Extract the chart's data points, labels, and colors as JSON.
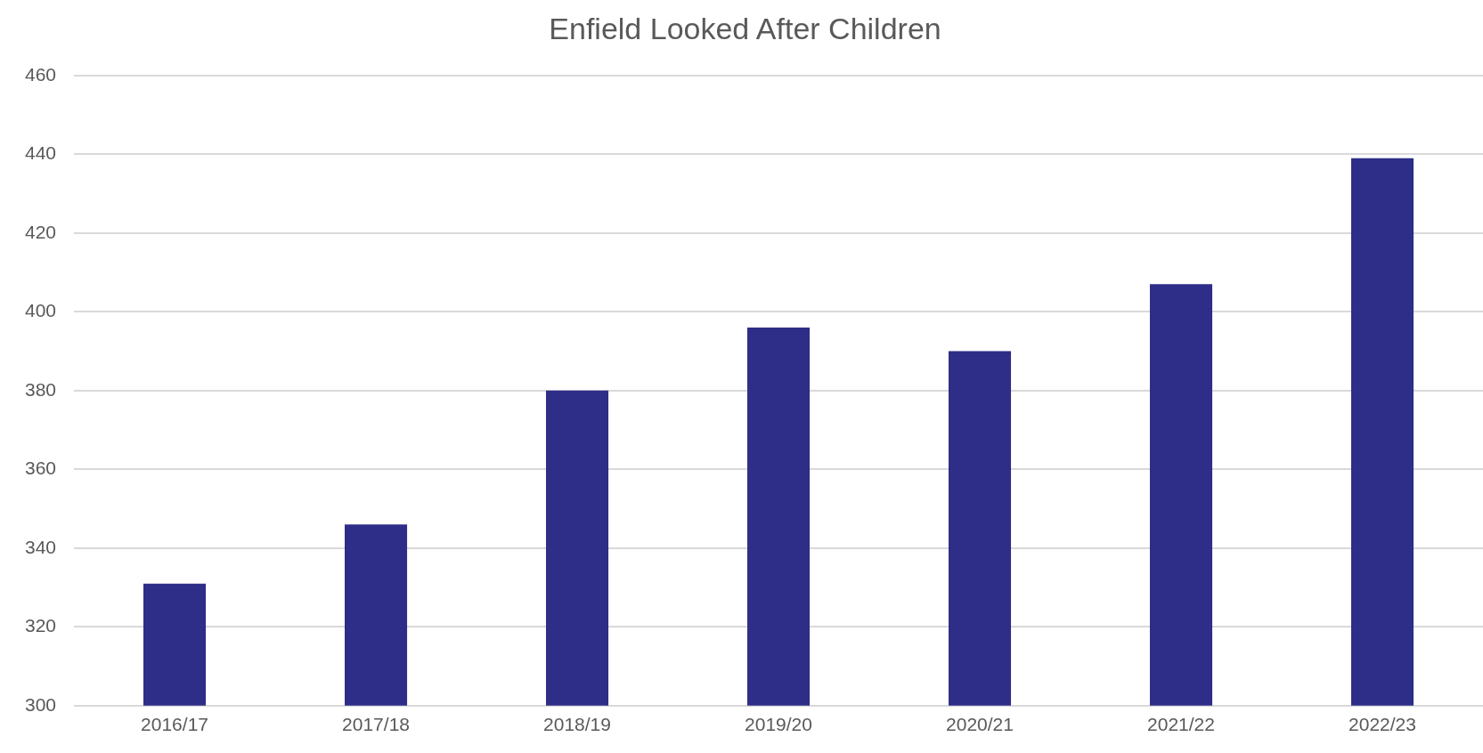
{
  "chart_data": {
    "type": "bar",
    "title": "Enfield Looked After Children",
    "categories": [
      "2016/17",
      "2017/18",
      "2018/19",
      "2019/20",
      "2020/21",
      "2021/22",
      "2022/23"
    ],
    "values": [
      331,
      346,
      380,
      396,
      390,
      407,
      439
    ],
    "color": "#2e2d88",
    "ylim": [
      300,
      460
    ],
    "yticks": [
      300,
      320,
      340,
      360,
      380,
      400,
      420,
      440,
      460
    ],
    "grid": "y"
  }
}
